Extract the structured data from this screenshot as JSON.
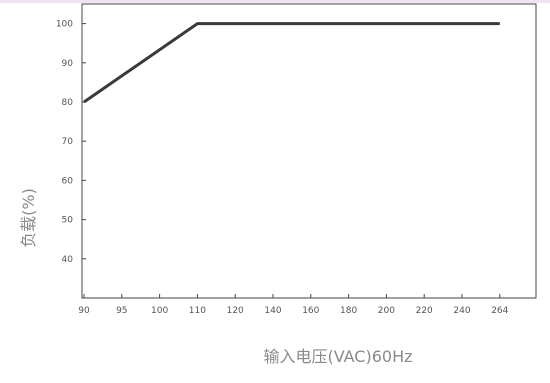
{
  "chart_data": {
    "type": "line",
    "title": "",
    "xlabel": "输入电压(VAC)60Hz",
    "ylabel": "负载(%)",
    "x_ticks": [
      "90",
      "95",
      "100",
      "110",
      "120",
      "140",
      "160",
      "180",
      "200",
      "220",
      "240",
      "264"
    ],
    "y_ticks": [
      "40",
      "50",
      "60",
      "70",
      "80",
      "90",
      "100"
    ],
    "ylim": [
      30,
      105
    ],
    "grid": false,
    "legend": "none",
    "series": [
      {
        "points": [
          {
            "x": "90",
            "y": 80
          },
          {
            "x": "110",
            "y": 100
          },
          {
            "x": "264",
            "y": 100
          }
        ],
        "color": "#3a3a3a"
      }
    ],
    "colors": {
      "axis": "#444444",
      "line": "#3a3a3a",
      "tick_text": "#555555",
      "title_text": "#8a8a8a"
    }
  }
}
